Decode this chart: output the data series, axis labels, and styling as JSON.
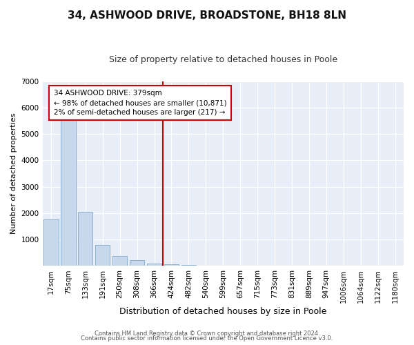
{
  "title": "34, ASHWOOD DRIVE, BROADSTONE, BH18 8LN",
  "subtitle": "Size of property relative to detached houses in Poole",
  "xlabel": "Distribution of detached houses by size in Poole",
  "ylabel": "Number of detached properties",
  "categories": [
    "17sqm",
    "75sqm",
    "133sqm",
    "191sqm",
    "250sqm",
    "308sqm",
    "366sqm",
    "424sqm",
    "482sqm",
    "540sqm",
    "599sqm",
    "657sqm",
    "715sqm",
    "773sqm",
    "831sqm",
    "889sqm",
    "947sqm",
    "1006sqm",
    "1064sqm",
    "1122sqm",
    "1180sqm"
  ],
  "values": [
    1750,
    5750,
    2050,
    800,
    370,
    230,
    100,
    60,
    30,
    10,
    5,
    2,
    1,
    0,
    0,
    0,
    0,
    0,
    0,
    0,
    0
  ],
  "bar_color": "#c8d8ec",
  "bar_edge_color": "#8ab0d0",
  "vline_x": 6.5,
  "vline_color": "#cc0000",
  "annotation_text": "34 ASHWOOD DRIVE: 379sqm\n← 98% of detached houses are smaller (10,871)\n2% of semi-detached houses are larger (217) →",
  "annotation_box_color": "white",
  "annotation_box_edge_color": "#cc0000",
  "ylim": [
    0,
    7000
  ],
  "yticks": [
    0,
    1000,
    2000,
    3000,
    4000,
    5000,
    6000,
    7000
  ],
  "footer_line1": "Contains HM Land Registry data © Crown copyright and database right 2024.",
  "footer_line2": "Contains public sector information licensed under the Open Government Licence v3.0.",
  "fig_bg_color": "#ffffff",
  "plot_bg_color": "#e8eef7",
  "grid_color": "#ffffff",
  "title_fontsize": 11,
  "subtitle_fontsize": 9,
  "tick_fontsize": 7.5,
  "ylabel_fontsize": 8,
  "xlabel_fontsize": 9
}
